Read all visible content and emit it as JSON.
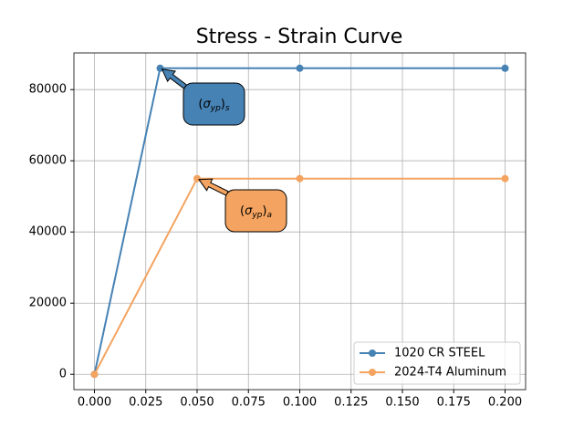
{
  "chart_data": {
    "type": "line",
    "title": "Stress - Strain Curve",
    "series": [
      {
        "name": "1020 CR STEEL",
        "color": "#4682b4",
        "x": [
          0,
          0.032,
          0.1,
          0.2
        ],
        "values": [
          0,
          86000,
          86000,
          86000
        ]
      },
      {
        "name": "2024-T4 Aluminum",
        "color": "#f4a460",
        "x": [
          0,
          0.05,
          0.1,
          0.2
        ],
        "values": [
          0,
          55000,
          55000,
          55000
        ]
      }
    ],
    "xlim": [
      -0.01,
      0.21
    ],
    "xticks": [
      {
        "value": 0,
        "label": "0.000"
      },
      {
        "value": 0.025,
        "label": "0.025"
      },
      {
        "value": 0.05,
        "label": "0.050"
      },
      {
        "value": 0.075,
        "label": "0.075"
      },
      {
        "value": 0.1,
        "label": "0.100"
      },
      {
        "value": 0.125,
        "label": "0.125"
      },
      {
        "value": 0.15,
        "label": "0.150"
      },
      {
        "value": 0.175,
        "label": "0.175"
      },
      {
        "value": 0.2,
        "label": "0.200"
      }
    ],
    "ylim": [
      -4300,
      90300
    ],
    "yticks": [
      0,
      20000,
      40000,
      60000,
      80000
    ],
    "grid": true,
    "legend": "lower right",
    "annotations": [
      {
        "text": [
          "(",
          "σ",
          "yp",
          ")",
          "s"
        ],
        "color": "#4682b4"
      },
      {
        "text": [
          "(",
          "σ",
          "yp",
          ")",
          "a"
        ],
        "color": "#f4a460"
      }
    ]
  }
}
